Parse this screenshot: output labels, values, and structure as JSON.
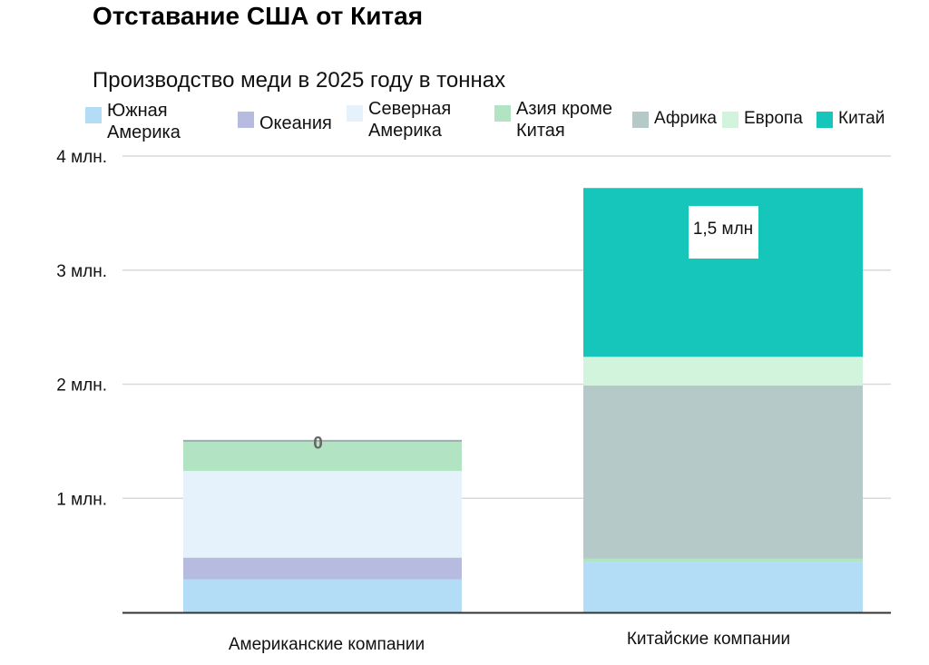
{
  "title": "Отставание США от Китая",
  "subtitle": "Производство меди в 2025 году в тоннах",
  "colors": {
    "south_america": "#b3dcf7",
    "oceania": "#b8bbe0",
    "north_america": "#e5f2fb",
    "asia_ex_china": "#b2e3c2",
    "africa": "#b5cac8",
    "europe": "#d2f3dc",
    "china": "#17c6bb"
  },
  "legend": [
    {
      "label": "Южная\nАмерика",
      "color_key": "south_america"
    },
    {
      "label": "Океания",
      "color_key": "oceania"
    },
    {
      "label": "Северная\nАмерика",
      "color_key": "north_america"
    },
    {
      "label": "Азия кроме\nКитая",
      "color_key": "asia_ex_china"
    },
    {
      "label": "Африка",
      "color_key": "africa"
    },
    {
      "label": "Европа",
      "color_key": "europe"
    },
    {
      "label": "Китай",
      "color_key": "china"
    }
  ],
  "chart_data": {
    "type": "bar",
    "stacked": true,
    "categories": [
      "Американские компании",
      "Китайские компании"
    ],
    "series": [
      {
        "name": "Южная Америка",
        "color_key": "south_america",
        "values": [
          290000,
          440000
        ]
      },
      {
        "name": "Океания",
        "color_key": "oceania",
        "values": [
          190000,
          0
        ]
      },
      {
        "name": "Северная Америка",
        "color_key": "north_america",
        "values": [
          760000,
          0
        ]
      },
      {
        "name": "Азия кроме Китая",
        "color_key": "asia_ex_china",
        "values": [
          260000,
          30000
        ]
      },
      {
        "name": "Африка",
        "color_key": "africa",
        "values": [
          0,
          1520000
        ]
      },
      {
        "name": "Европа",
        "color_key": "europe",
        "values": [
          0,
          250000
        ]
      },
      {
        "name": "Китай",
        "color_key": "china",
        "values": [
          0,
          1480000
        ]
      }
    ],
    "ylim": [
      0,
      4000000
    ],
    "yticks": [
      {
        "value": 1000000,
        "label": "1 млн."
      },
      {
        "value": 2000000,
        "label": "2 млн."
      },
      {
        "value": 3000000,
        "label": "3 млн."
      },
      {
        "value": 4000000,
        "label": "4 млн."
      }
    ],
    "annotations": [
      {
        "category": "Американские компании",
        "series": "Китай",
        "text": "0",
        "style": "plain"
      },
      {
        "category": "Китайские компании",
        "series": "Китай",
        "text": "1,5 млн",
        "style": "boxed"
      }
    ],
    "grid": true,
    "legend_position": "top"
  }
}
